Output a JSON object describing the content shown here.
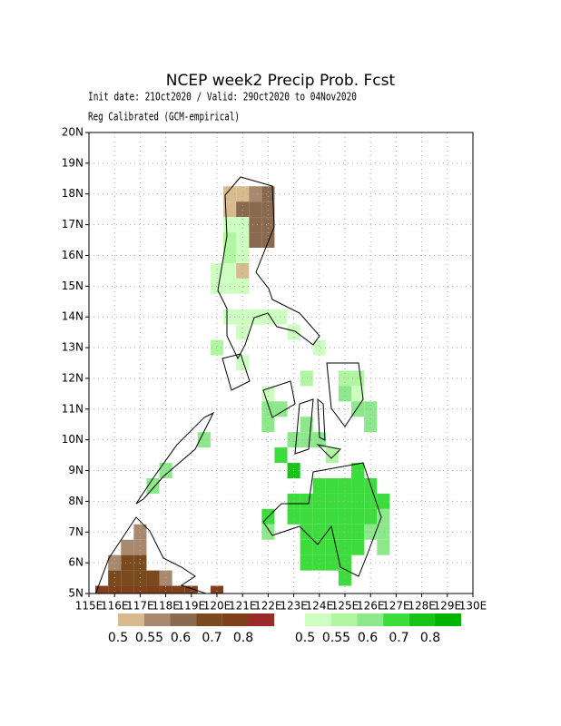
{
  "title": "NCEP week2 Precip Prob. Fcst",
  "subtitle": "Init date: 21Oct2020 / Valid: 29Oct2020 to 04Nov2020",
  "note": "Reg Calibrated (GCM-empirical)",
  "map": {
    "xlim": [
      115,
      130
    ],
    "ylim": [
      5,
      20
    ],
    "xticks": [
      {
        "value": 115,
        "label": "115E"
      },
      {
        "value": 116,
        "label": "116E"
      },
      {
        "value": 117,
        "label": "117E"
      },
      {
        "value": 118,
        "label": "118E"
      },
      {
        "value": 119,
        "label": "119E"
      },
      {
        "value": 120,
        "label": "120E"
      },
      {
        "value": 121,
        "label": "121E"
      },
      {
        "value": 122,
        "label": "122E"
      },
      {
        "value": 123,
        "label": "123E"
      },
      {
        "value": 124,
        "label": "124E"
      },
      {
        "value": 125,
        "label": "125E"
      },
      {
        "value": 126,
        "label": "126E"
      },
      {
        "value": 127,
        "label": "127E"
      },
      {
        "value": 128,
        "label": "128E"
      },
      {
        "value": 129,
        "label": "129E"
      },
      {
        "value": 130,
        "label": "130E"
      }
    ],
    "yticks": [
      {
        "value": 5,
        "label": "5N"
      },
      {
        "value": 6,
        "label": "6N"
      },
      {
        "value": 7,
        "label": "7N"
      },
      {
        "value": 8,
        "label": "8N"
      },
      {
        "value": 9,
        "label": "9N"
      },
      {
        "value": 10,
        "label": "10N"
      },
      {
        "value": 11,
        "label": "11N"
      },
      {
        "value": 12,
        "label": "12N"
      },
      {
        "value": 13,
        "label": "13N"
      },
      {
        "value": 14,
        "label": "14N"
      },
      {
        "value": 15,
        "label": "15N"
      },
      {
        "value": 16,
        "label": "16N"
      },
      {
        "value": 17,
        "label": "17N"
      },
      {
        "value": 18,
        "label": "18N"
      },
      {
        "value": 19,
        "label": "19N"
      },
      {
        "value": 20,
        "label": "20N"
      }
    ],
    "grid": true
  },
  "below_normal": {
    "levels": [
      0.5,
      0.55,
      0.6,
      0.7,
      0.8
    ],
    "colors": [
      "#d8ba8e",
      "#a8896e",
      "#8a6a4e",
      "#7a4a1e",
      "#7e3f1a",
      "#9b2b2b"
    ],
    "cells": [
      [
        120.25,
        17.75,
        0.52
      ],
      [
        120.75,
        17.75,
        0.52
      ],
      [
        121.25,
        17.75,
        0.57
      ],
      [
        121.75,
        17.75,
        0.62
      ],
      [
        120.25,
        17.25,
        0.52
      ],
      [
        120.75,
        17.25,
        0.65
      ],
      [
        121.25,
        17.25,
        0.65
      ],
      [
        121.75,
        17.25,
        0.65
      ],
      [
        121.25,
        16.75,
        0.65
      ],
      [
        121.75,
        16.75,
        0.65
      ],
      [
        121.25,
        16.25,
        0.65
      ],
      [
        121.75,
        16.25,
        0.65
      ],
      [
        120.75,
        15.25,
        0.52
      ],
      [
        116.75,
        6.75,
        0.57
      ],
      [
        116.25,
        6.25,
        0.57
      ],
      [
        116.75,
        6.25,
        0.57
      ],
      [
        115.75,
        5.75,
        0.57
      ],
      [
        116.25,
        5.75,
        0.75
      ],
      [
        116.75,
        5.75,
        0.75
      ],
      [
        115.75,
        5.25,
        0.75
      ],
      [
        116.25,
        5.25,
        0.75
      ],
      [
        116.75,
        5.25,
        0.75
      ],
      [
        117.25,
        5.25,
        0.75
      ],
      [
        117.75,
        5.25,
        0.57
      ],
      [
        115.25,
        4.75,
        0.8
      ],
      [
        115.75,
        4.75,
        0.8
      ],
      [
        116.25,
        4.75,
        0.8
      ],
      [
        116.75,
        4.75,
        0.8
      ],
      [
        117.25,
        4.75,
        0.8
      ],
      [
        117.75,
        4.75,
        0.8
      ],
      [
        118.25,
        4.75,
        0.8
      ],
      [
        118.75,
        4.75,
        0.8
      ],
      [
        119.75,
        4.75,
        0.8
      ]
    ]
  },
  "above_normal": {
    "levels": [
      0.5,
      0.55,
      0.6,
      0.7,
      0.8
    ],
    "colors": [
      "#ccffc0",
      "#b0f5a0",
      "#8ce88a",
      "#3ddc3d",
      "#16c316",
      "#00b400"
    ],
    "cells": [
      [
        120.25,
        16.75,
        0.52
      ],
      [
        120.75,
        16.75,
        0.52
      ],
      [
        120.25,
        16.25,
        0.57
      ],
      [
        120.75,
        16.25,
        0.52
      ],
      [
        120.25,
        15.75,
        0.57
      ],
      [
        120.75,
        15.75,
        0.52
      ],
      [
        119.75,
        15.25,
        0.52
      ],
      [
        120.25,
        15.25,
        0.52
      ],
      [
        119.75,
        14.75,
        0.52
      ],
      [
        120.25,
        14.75,
        0.52
      ],
      [
        120.75,
        14.75,
        0.52
      ],
      [
        120.25,
        13.75,
        0.52
      ],
      [
        120.75,
        13.75,
        0.52
      ],
      [
        121.25,
        13.75,
        0.52
      ],
      [
        121.75,
        13.75,
        0.52
      ],
      [
        122.25,
        13.75,
        0.52
      ],
      [
        120.75,
        13.25,
        0.52
      ],
      [
        122.75,
        13.25,
        0.52
      ],
      [
        119.75,
        12.75,
        0.57
      ],
      [
        123.75,
        12.75,
        0.52
      ],
      [
        120.75,
        12.25,
        0.52
      ],
      [
        123.25,
        11.75,
        0.57
      ],
      [
        124.75,
        11.75,
        0.57
      ],
      [
        125.25,
        11.75,
        0.57
      ],
      [
        121.75,
        11.25,
        0.52
      ],
      [
        124.75,
        11.25,
        0.62
      ],
      [
        125.25,
        11.25,
        0.52
      ],
      [
        121.75,
        10.75,
        0.62
      ],
      [
        122.25,
        10.75,
        0.62
      ],
      [
        125.25,
        10.75,
        0.62
      ],
      [
        125.75,
        10.75,
        0.62
      ],
      [
        121.75,
        10.25,
        0.62
      ],
      [
        123.25,
        10.25,
        0.62
      ],
      [
        125.75,
        10.25,
        0.62
      ],
      [
        119.25,
        9.75,
        0.62
      ],
      [
        122.75,
        9.75,
        0.62
      ],
      [
        123.25,
        9.75,
        0.62
      ],
      [
        123.75,
        9.75,
        0.62
      ],
      [
        122.25,
        9.25,
        0.72
      ],
      [
        124.25,
        9.25,
        0.57
      ],
      [
        117.75,
        8.75,
        0.62
      ],
      [
        117.25,
        8.25,
        0.62
      ],
      [
        122.75,
        8.75,
        0.8
      ],
      [
        125.25,
        8.75,
        0.72
      ],
      [
        123.75,
        8.25,
        0.72
      ],
      [
        124.25,
        8.25,
        0.72
      ],
      [
        124.75,
        8.25,
        0.72
      ],
      [
        125.25,
        8.25,
        0.72
      ],
      [
        125.75,
        8.25,
        0.72
      ],
      [
        122.75,
        7.75,
        0.72
      ],
      [
        123.25,
        7.75,
        0.72
      ],
      [
        123.75,
        7.75,
        0.72
      ],
      [
        124.25,
        7.75,
        0.72
      ],
      [
        124.75,
        7.75,
        0.72
      ],
      [
        125.25,
        7.75,
        0.72
      ],
      [
        125.75,
        7.75,
        0.72
      ],
      [
        126.25,
        7.75,
        0.72
      ],
      [
        121.75,
        7.25,
        0.72
      ],
      [
        122.75,
        7.25,
        0.72
      ],
      [
        123.25,
        7.25,
        0.72
      ],
      [
        123.75,
        7.25,
        0.72
      ],
      [
        124.25,
        7.25,
        0.72
      ],
      [
        124.75,
        7.25,
        0.72
      ],
      [
        125.25,
        7.25,
        0.72
      ],
      [
        125.75,
        7.25,
        0.72
      ],
      [
        126.25,
        7.25,
        0.62
      ],
      [
        121.75,
        6.75,
        0.62
      ],
      [
        123.25,
        6.75,
        0.72
      ],
      [
        123.75,
        6.75,
        0.72
      ],
      [
        124.25,
        6.75,
        0.72
      ],
      [
        124.75,
        6.75,
        0.72
      ],
      [
        125.25,
        6.75,
        0.72
      ],
      [
        125.75,
        6.75,
        0.62
      ],
      [
        126.25,
        6.75,
        0.62
      ],
      [
        123.25,
        6.25,
        0.72
      ],
      [
        123.75,
        6.25,
        0.72
      ],
      [
        124.25,
        6.25,
        0.72
      ],
      [
        124.75,
        6.25,
        0.72
      ],
      [
        125.25,
        6.25,
        0.72
      ],
      [
        126.25,
        6.25,
        0.62
      ],
      [
        123.25,
        5.75,
        0.72
      ],
      [
        123.75,
        5.75,
        0.72
      ],
      [
        124.25,
        5.75,
        0.72
      ],
      [
        124.75,
        5.75,
        0.72
      ],
      [
        124.75,
        5.25,
        0.72
      ]
    ]
  }
}
